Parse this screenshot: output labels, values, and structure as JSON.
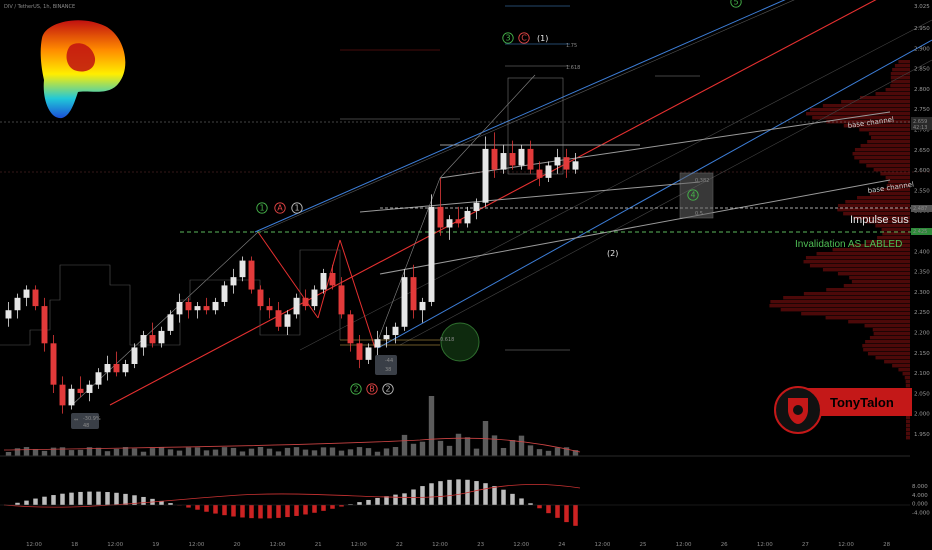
{
  "header": {
    "symbol_line": "DIV / TetherUS, 1h, BINANCE"
  },
  "brand": {
    "name": "TonyTalon",
    "bg": "#cc1f1f"
  },
  "colors": {
    "up": "#e6e6e6",
    "down": "#e23a3a",
    "blue_channel": "#3d7ed8",
    "red_channel": "#e53030",
    "base_channel": "#9a9a9a",
    "invalidation": "#5cb85c",
    "wave_green": "#46b34a",
    "wave_red": "#e34545"
  },
  "annotations": {
    "impulse_sus": "Impulse sus",
    "invalidation": "Invalidation AS LABLED",
    "base_channel_1": "base channel",
    "base_channel_2": "base channel",
    "wave_minus2": "(2)",
    "wave_one_paren": "(1)",
    "fib_1618": "1.618",
    "fib_1_75": "1.75",
    "fib_05": "0.5",
    "fib_0618": "0.618",
    "fib_0382": "0.382"
  },
  "wave_labels": {
    "w1_top": "1",
    "wA_top": "A",
    "w1b_top": "1",
    "w2_bottom": "2",
    "wB_bottom": "B",
    "w2b_bottom": "2",
    "w3_top": "3",
    "wC_top": "C",
    "w4": "4",
    "w5": "5"
  },
  "measure_boxes": [
    {
      "line1": "-30.9%",
      "line2": "48"
    },
    {
      "line1": "-44",
      "line2": "38"
    }
  ],
  "price_axis": {
    "ticks": [
      "3.025",
      "2.950",
      "2.900",
      "2.850",
      "2.800",
      "2.750",
      "2.700",
      "2.650",
      "2.600",
      "2.550",
      "2.500",
      "2.450",
      "2.400",
      "2.350",
      "2.300",
      "2.250",
      "2.200",
      "2.150",
      "2.100",
      "2.050",
      "2.000",
      "1.950"
    ],
    "current_price": "2.659",
    "current_time": "42:13",
    "level_impulse": "2.487",
    "level_invalid": "2.425"
  },
  "osc_axis": {
    "ticks": [
      "8.000",
      "4.000",
      "0.000",
      "-4.000"
    ]
  },
  "time_axis": {
    "ticks": [
      "12:00",
      "18",
      "12:00",
      "19",
      "12:00",
      "20",
      "12:00",
      "21",
      "12:00",
      "22",
      "12:00",
      "23",
      "12:00",
      "24",
      "12:00",
      "25",
      "12:00",
      "26",
      "12:00",
      "27",
      "12:00",
      "28"
    ]
  },
  "chart_data": {
    "type": "candlestick",
    "title": "DIV / TetherUS, 1h, BINANCE",
    "ylim": [
      1.95,
      3.05
    ],
    "y_levels": {
      "current": 2.659,
      "impulse_sus": 2.487,
      "invalidation": 2.425
    },
    "candles": [
      [
        2.28,
        2.32,
        2.26,
        2.3
      ],
      [
        2.3,
        2.34,
        2.28,
        2.33
      ],
      [
        2.33,
        2.36,
        2.31,
        2.35
      ],
      [
        2.35,
        2.36,
        2.3,
        2.31
      ],
      [
        2.31,
        2.33,
        2.2,
        2.22
      ],
      [
        2.22,
        2.24,
        2.1,
        2.12
      ],
      [
        2.12,
        2.14,
        2.05,
        2.07
      ],
      [
        2.07,
        2.12,
        2.06,
        2.11
      ],
      [
        2.11,
        2.14,
        2.09,
        2.1
      ],
      [
        2.1,
        2.13,
        2.08,
        2.12
      ],
      [
        2.12,
        2.16,
        2.11,
        2.15
      ],
      [
        2.15,
        2.19,
        2.13,
        2.17
      ],
      [
        2.17,
        2.2,
        2.14,
        2.15
      ],
      [
        2.15,
        2.18,
        2.14,
        2.17
      ],
      [
        2.17,
        2.22,
        2.16,
        2.21
      ],
      [
        2.21,
        2.25,
        2.19,
        2.24
      ],
      [
        2.24,
        2.27,
        2.21,
        2.22
      ],
      [
        2.22,
        2.26,
        2.21,
        2.25
      ],
      [
        2.25,
        2.3,
        2.24,
        2.29
      ],
      [
        2.29,
        2.34,
        2.27,
        2.32
      ],
      [
        2.32,
        2.33,
        2.28,
        2.3
      ],
      [
        2.3,
        2.32,
        2.28,
        2.31
      ],
      [
        2.31,
        2.33,
        2.29,
        2.3
      ],
      [
        2.3,
        2.33,
        2.29,
        2.32
      ],
      [
        2.32,
        2.37,
        2.31,
        2.36
      ],
      [
        2.36,
        2.4,
        2.34,
        2.38
      ],
      [
        2.38,
        2.43,
        2.37,
        2.42
      ],
      [
        2.42,
        2.43,
        2.34,
        2.35
      ],
      [
        2.35,
        2.36,
        2.3,
        2.31
      ],
      [
        2.31,
        2.33,
        2.28,
        2.3
      ],
      [
        2.3,
        2.32,
        2.25,
        2.26
      ],
      [
        2.26,
        2.3,
        2.24,
        2.29
      ],
      [
        2.29,
        2.34,
        2.28,
        2.33
      ],
      [
        2.33,
        2.35,
        2.3,
        2.31
      ],
      [
        2.31,
        2.36,
        2.3,
        2.35
      ],
      [
        2.35,
        2.4,
        2.34,
        2.39
      ],
      [
        2.39,
        2.41,
        2.35,
        2.36
      ],
      [
        2.36,
        2.38,
        2.28,
        2.29
      ],
      [
        2.29,
        2.3,
        2.2,
        2.22
      ],
      [
        2.22,
        2.24,
        2.16,
        2.18
      ],
      [
        2.18,
        2.22,
        2.17,
        2.21
      ],
      [
        2.21,
        2.25,
        2.19,
        2.23
      ],
      [
        2.23,
        2.26,
        2.21,
        2.24
      ],
      [
        2.24,
        2.27,
        2.22,
        2.26
      ],
      [
        2.26,
        2.4,
        2.25,
        2.38
      ],
      [
        2.38,
        2.41,
        2.28,
        2.3
      ],
      [
        2.3,
        2.33,
        2.27,
        2.32
      ],
      [
        2.32,
        2.58,
        2.31,
        2.55
      ],
      [
        2.55,
        2.62,
        2.48,
        2.5
      ],
      [
        2.5,
        2.53,
        2.47,
        2.52
      ],
      [
        2.52,
        2.55,
        2.5,
        2.51
      ],
      [
        2.51,
        2.55,
        2.5,
        2.54
      ],
      [
        2.54,
        2.57,
        2.52,
        2.56
      ],
      [
        2.56,
        2.72,
        2.55,
        2.69
      ],
      [
        2.69,
        2.73,
        2.62,
        2.64
      ],
      [
        2.64,
        2.7,
        2.63,
        2.68
      ],
      [
        2.68,
        2.71,
        2.64,
        2.65
      ],
      [
        2.65,
        2.7,
        2.64,
        2.69
      ],
      [
        2.69,
        2.71,
        2.63,
        2.64
      ],
      [
        2.64,
        2.66,
        2.6,
        2.62
      ],
      [
        2.62,
        2.66,
        2.61,
        2.65
      ],
      [
        2.65,
        2.69,
        2.63,
        2.67
      ],
      [
        2.67,
        2.69,
        2.62,
        2.64
      ],
      [
        2.64,
        2.68,
        2.63,
        2.66
      ]
    ]
  }
}
